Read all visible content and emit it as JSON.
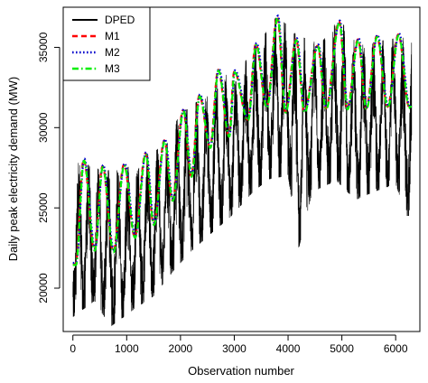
{
  "chart_data": {
    "type": "line",
    "title": "",
    "xlabel": "Observation number",
    "ylabel": "Daily peak electricity demand (MW)",
    "xlim": [
      -180,
      6450
    ],
    "ylim": [
      17300,
      37500
    ],
    "x_ticks": [
      0,
      1000,
      2000,
      3000,
      4000,
      5000,
      6000
    ],
    "y_ticks": [
      20000,
      25000,
      30000,
      35000
    ],
    "x_tick_labels": [
      "0",
      "1000",
      "2000",
      "3000",
      "4000",
      "5000",
      "6000"
    ],
    "y_tick_labels": [
      "20000",
      "25000",
      "30000",
      "35000"
    ],
    "grid": false,
    "legend_position": "top-left",
    "n_observations": 6300,
    "series": [
      {
        "name": "DPED",
        "color": "#000000",
        "style": "solid",
        "description": "Observed daily peak electricity demand with annual seasonal cycles and upward trend",
        "trend_points": [
          [
            0,
            22000
          ],
          [
            1000,
            22800
          ],
          [
            2000,
            25200
          ],
          [
            3000,
            27800
          ],
          [
            3800,
            30500
          ],
          [
            4500,
            30500
          ],
          [
            5000,
            30800
          ],
          [
            6000,
            30300
          ],
          [
            6300,
            30000
          ]
        ],
        "peak_points": [
          [
            200,
            27800
          ],
          [
            550,
            27300
          ],
          [
            1000,
            27500
          ],
          [
            1400,
            28300
          ],
          [
            1750,
            29000
          ],
          [
            2000,
            31000
          ],
          [
            2350,
            31700
          ],
          [
            2700,
            33200
          ],
          [
            3050,
            33400
          ],
          [
            3450,
            35300
          ],
          [
            3800,
            37000
          ],
          [
            4150,
            35800
          ],
          [
            4600,
            35200
          ],
          [
            4950,
            36800
          ],
          [
            5300,
            35100
          ],
          [
            5700,
            35400
          ],
          [
            6050,
            35600
          ]
        ],
        "trough_points": [
          [
            0,
            18200
          ],
          [
            400,
            19200
          ],
          [
            700,
            17600
          ],
          [
            1100,
            18600
          ],
          [
            1500,
            19500
          ],
          [
            1850,
            21000
          ],
          [
            2200,
            22300
          ],
          [
            2600,
            23500
          ],
          [
            2950,
            24500
          ],
          [
            3350,
            26000
          ],
          [
            3650,
            26800
          ],
          [
            4000,
            27000
          ],
          [
            4200,
            22500
          ],
          [
            4450,
            26000
          ],
          [
            4900,
            26700
          ],
          [
            5250,
            25500
          ],
          [
            5600,
            26000
          ],
          [
            6000,
            26500
          ],
          [
            6200,
            24500
          ]
        ]
      },
      {
        "name": "M1",
        "color": "#ff0000",
        "style": "dashed"
      },
      {
        "name": "M2",
        "color": "#0000cc",
        "style": "dotted"
      },
      {
        "name": "M3",
        "color": "#00ee00",
        "style": "dashdot"
      }
    ],
    "model_cycle": {
      "period": 365,
      "peaks": [
        [
          200,
          28000
        ],
        [
          550,
          27600
        ],
        [
          950,
          27700
        ],
        [
          1350,
          28400
        ],
        [
          1700,
          29200
        ],
        [
          2050,
          31100
        ],
        [
          2350,
          32000
        ],
        [
          2700,
          33600
        ],
        [
          3000,
          33500
        ],
        [
          3400,
          35200
        ],
        [
          3800,
          36900
        ],
        [
          4150,
          35500
        ],
        [
          4550,
          35100
        ],
        [
          4950,
          36600
        ],
        [
          5300,
          35500
        ],
        [
          5650,
          35700
        ],
        [
          6050,
          35800
        ]
      ],
      "troughs": [
        [
          50,
          21500
        ],
        [
          400,
          22400
        ],
        [
          750,
          22300
        ],
        [
          1150,
          23200
        ],
        [
          1500,
          24000
        ],
        [
          1850,
          25500
        ],
        [
          2200,
          27000
        ],
        [
          2550,
          28800
        ],
        [
          2900,
          29500
        ],
        [
          3250,
          30500
        ],
        [
          3600,
          31300
        ],
        [
          3950,
          31000
        ],
        [
          4300,
          31000
        ],
        [
          4700,
          31200
        ],
        [
          5100,
          31200
        ],
        [
          5450,
          31200
        ],
        [
          5850,
          31300
        ],
        [
          6250,
          31300
        ]
      ]
    }
  }
}
